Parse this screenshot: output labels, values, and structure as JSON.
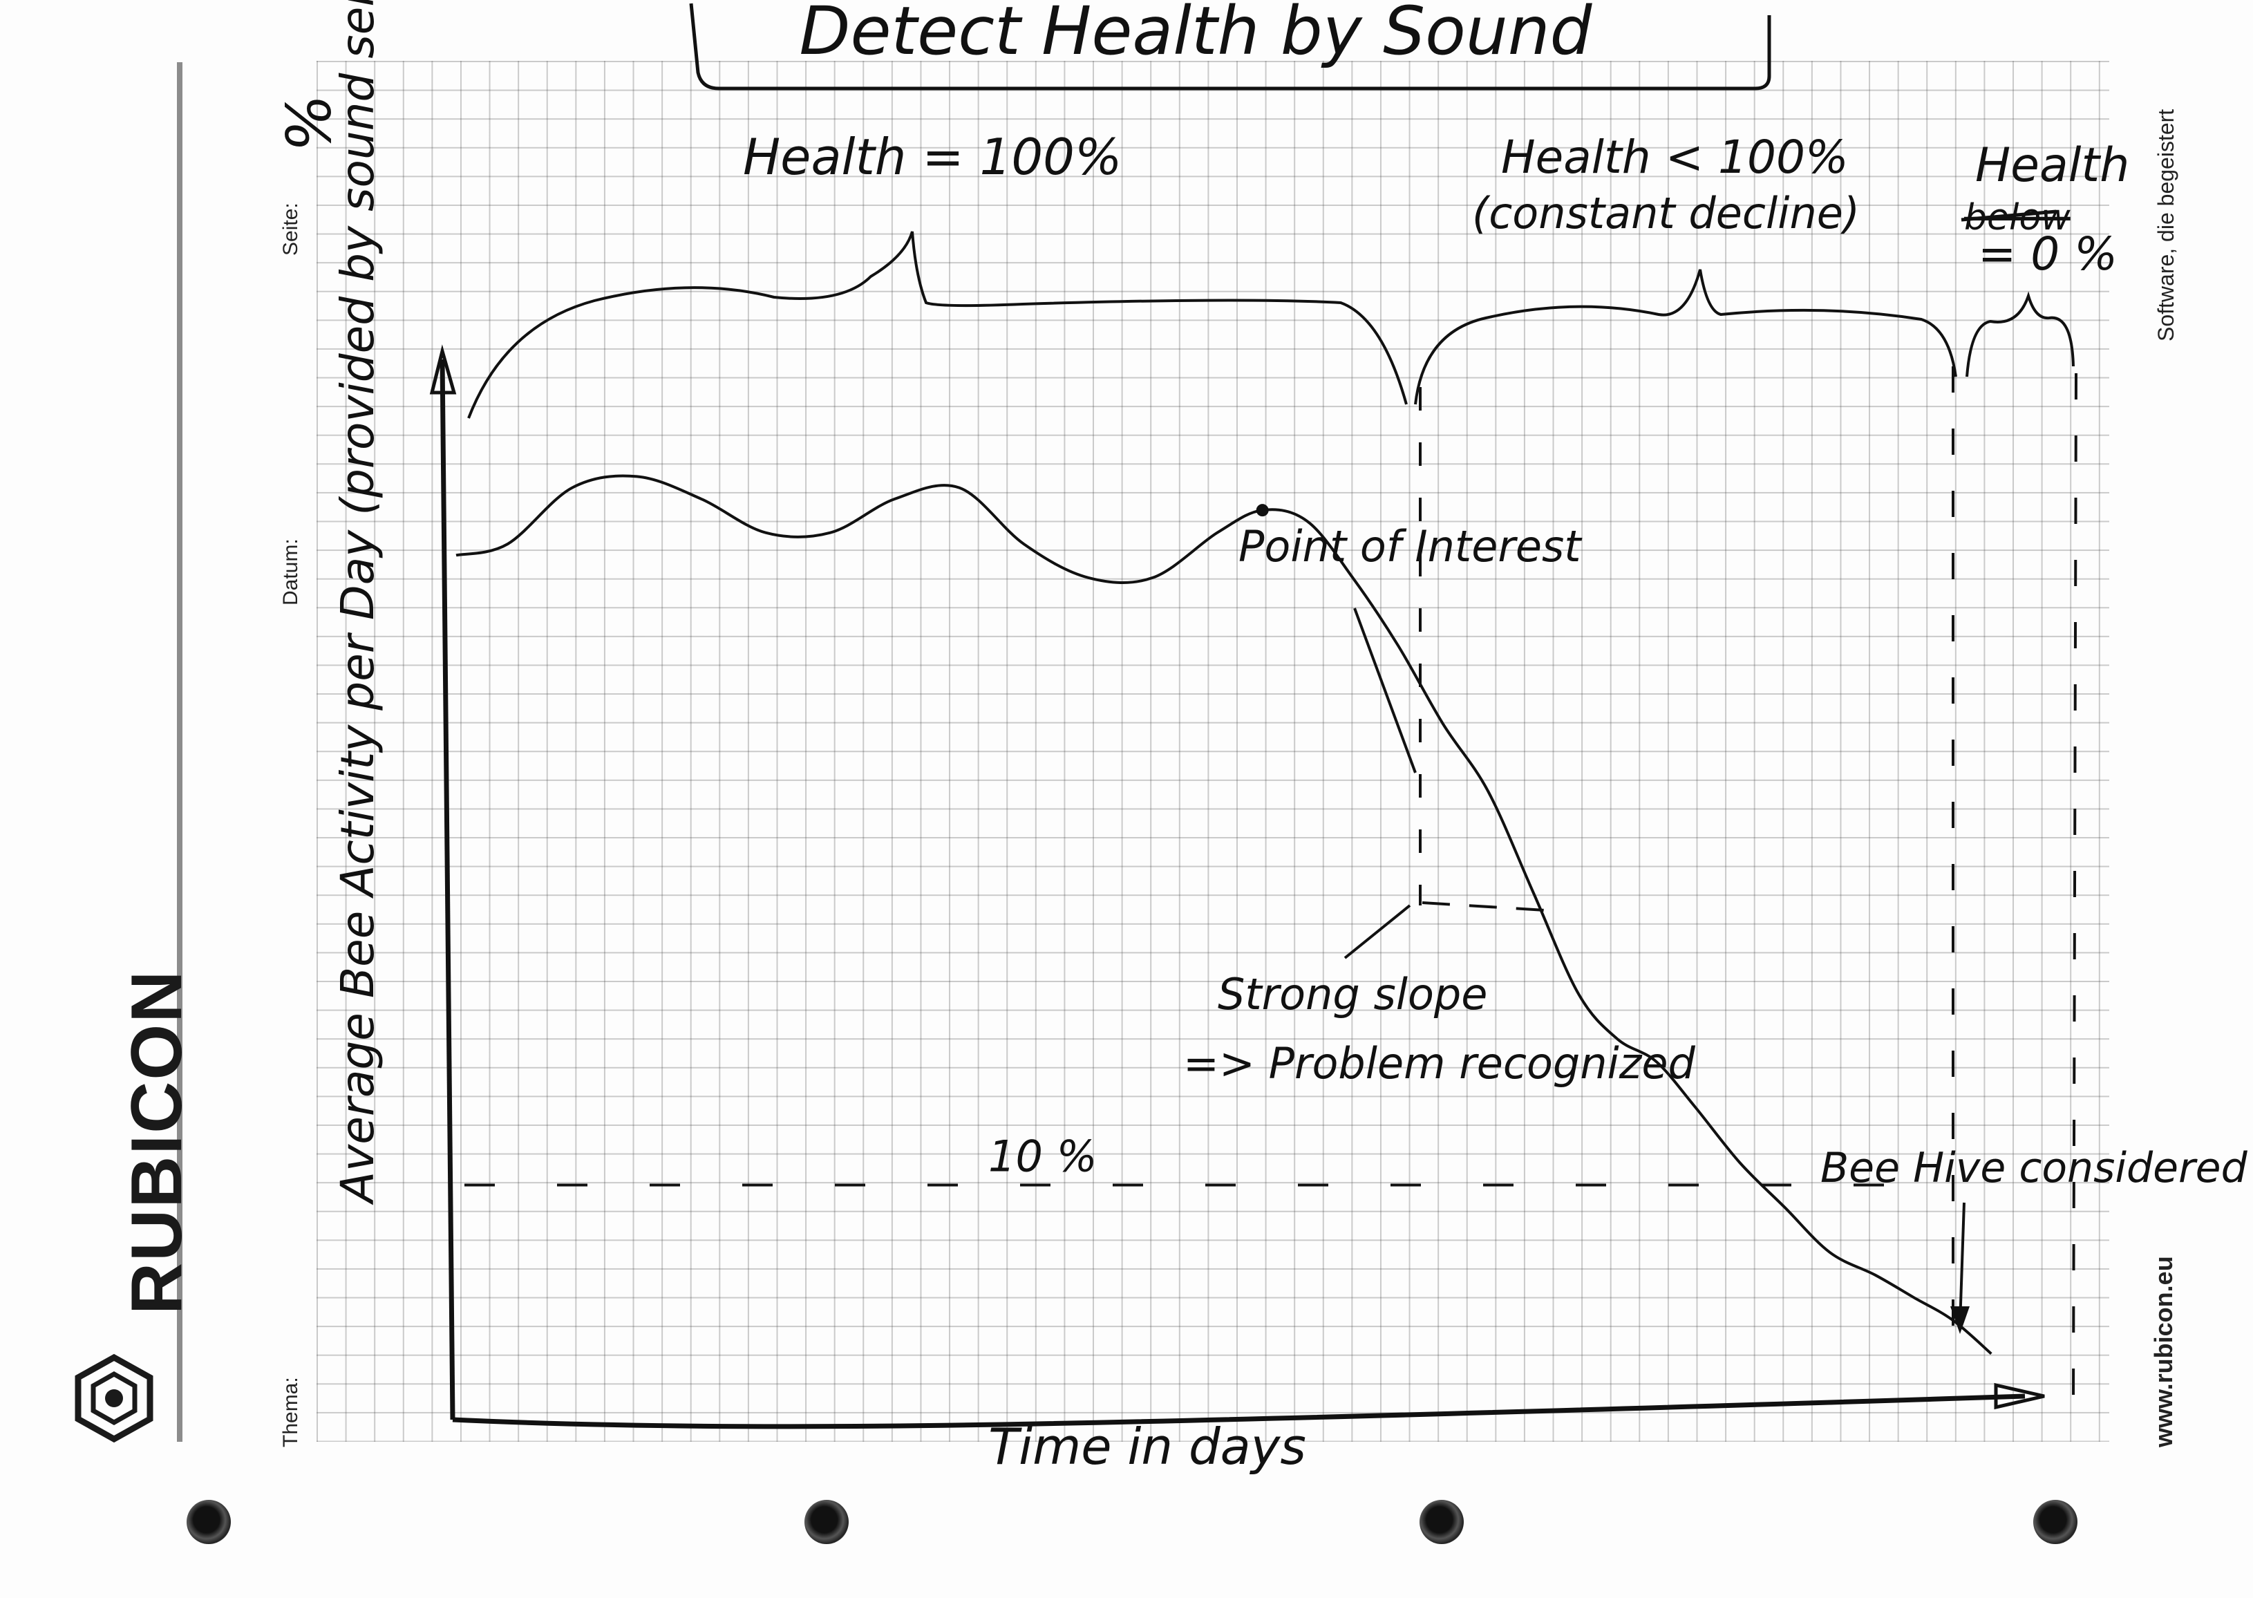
{
  "page": {
    "brand": "RUBICON",
    "labels": {
      "thema": "Thema:",
      "datum": "Datum:",
      "seite": "Seite:"
    },
    "tagline": "Software, die begeistert",
    "url": "www.rubicon.eu",
    "corner_mark": "%"
  },
  "chart_data": {
    "type": "line",
    "title": "Detect Health by Sound",
    "xlabel": "Time in days",
    "ylabel": "Average Bee Activity per Day (provided by sound sensor)",
    "x": [
      0,
      0.4,
      0.9,
      1.4,
      1.9,
      2.4,
      2.9,
      3.4,
      3.9,
      4.4,
      4.9,
      5.4,
      5.9,
      6.25,
      6.6,
      6.95,
      7.3,
      7.65,
      8.0,
      8.35,
      8.7,
      9.0,
      9.3,
      9.6,
      9.95,
      10.3,
      10.65,
      11.0,
      11.3,
      11.6,
      11.9
    ],
    "values": [
      66,
      67,
      72,
      73,
      71,
      68,
      68,
      71,
      72,
      67,
      64,
      64,
      68,
      70,
      69,
      64,
      58,
      51,
      45,
      36,
      27,
      23,
      21,
      17,
      12,
      8,
      4,
      2,
      0,
      -2,
      -5
    ],
    "threshold": {
      "value": 10,
      "label": "10 %"
    },
    "xlim": [
      0,
      12
    ],
    "ylim": [
      -10,
      100
    ],
    "health_phases": [
      {
        "label": "Health = 100%",
        "x_range": [
          0,
          6.25
        ]
      },
      {
        "label": "Health < 100%",
        "sublabel": "(constant decline)",
        "x_range": [
          6.25,
          10.35
        ]
      },
      {
        "label": "Health",
        "struck": "below",
        "value": "= 0 %",
        "x_range": [
          10.35,
          11.2
        ]
      }
    ],
    "annotations": [
      {
        "text": "Point of Interest",
        "x": 6.25,
        "y": 70
      },
      {
        "text": "Strong slope",
        "sublabel": "=> Problem recognized",
        "x": 6.25,
        "y": 58
      },
      {
        "text": "Bee Hive considered dead",
        "x": 10.35,
        "y": 10
      }
    ],
    "grid": true,
    "legend": "none"
  }
}
